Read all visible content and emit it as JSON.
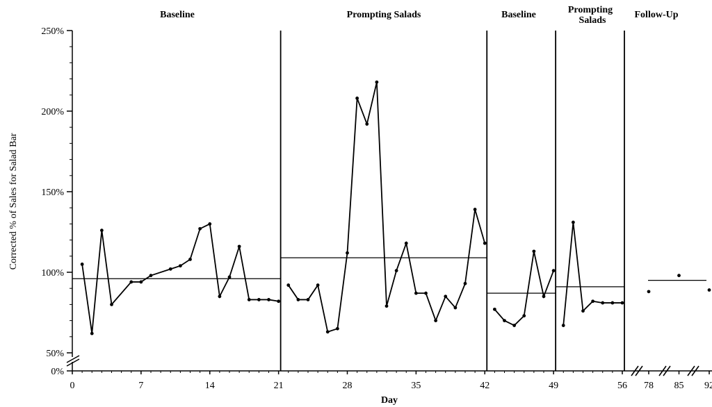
{
  "chart_data": {
    "type": "line",
    "title": "",
    "xlabel": "Day",
    "ylabel": "Corrected % of Sales for Salad Bar",
    "yticks": [
      "0%",
      "50%",
      "100%",
      "150%",
      "200%",
      "250%"
    ],
    "xticks": [
      "0",
      "7",
      "14",
      "21",
      "28",
      "35",
      "42",
      "49",
      "56",
      "78",
      "85",
      "92"
    ],
    "y_range_percent": [
      50,
      250
    ],
    "legend": "none",
    "grid": false,
    "phases": [
      {
        "name": "Baseline",
        "start_day": 0,
        "end_day": 21,
        "mean": 96,
        "points": [
          [
            1,
            105
          ],
          [
            2,
            62
          ],
          [
            3,
            126
          ],
          [
            4,
            80
          ],
          [
            6,
            94
          ],
          [
            7,
            94
          ],
          [
            8,
            98
          ],
          [
            10,
            102
          ],
          [
            11,
            104
          ],
          [
            12,
            108
          ],
          [
            13,
            127
          ],
          [
            14,
            130
          ],
          [
            15,
            85
          ],
          [
            16,
            97
          ],
          [
            17,
            116
          ],
          [
            18,
            83
          ],
          [
            19,
            83
          ],
          [
            20,
            83
          ],
          [
            21,
            82
          ]
        ]
      },
      {
        "name": "Prompting Salads",
        "start_day": 21,
        "end_day": 42,
        "mean": 109,
        "points": [
          [
            22,
            92
          ],
          [
            23,
            83
          ],
          [
            24,
            83
          ],
          [
            25,
            92
          ],
          [
            26,
            63
          ],
          [
            27,
            65
          ],
          [
            28,
            112
          ],
          [
            29,
            208
          ],
          [
            30,
            192
          ],
          [
            31,
            218
          ],
          [
            32,
            79
          ],
          [
            33,
            101
          ],
          [
            34,
            118
          ],
          [
            35,
            87
          ],
          [
            36,
            87
          ],
          [
            37,
            70
          ],
          [
            38,
            85
          ],
          [
            39,
            78
          ],
          [
            40,
            93
          ],
          [
            41,
            139
          ],
          [
            42,
            118
          ]
        ]
      },
      {
        "name": "Baseline",
        "start_day": 42,
        "end_day": 49,
        "mean": 87,
        "points": [
          [
            43,
            77
          ],
          [
            44,
            70
          ],
          [
            45,
            67
          ],
          [
            46,
            73
          ],
          [
            47,
            113
          ],
          [
            48,
            85
          ],
          [
            49,
            101
          ]
        ]
      },
      {
        "name": "Prompting Salads",
        "start_day": 49,
        "end_day": 56,
        "mean": 91,
        "points": [
          [
            50,
            67
          ],
          [
            51,
            131
          ],
          [
            52,
            76
          ],
          [
            53,
            82
          ],
          [
            54,
            81
          ],
          [
            55,
            81
          ],
          [
            56,
            81
          ]
        ]
      },
      {
        "name": "Follow-Up",
        "start_day": 56,
        "end_day": 92,
        "mean": 95,
        "points": [
          [
            78,
            88
          ],
          [
            85,
            98
          ],
          [
            92,
            89
          ]
        ]
      }
    ]
  },
  "labels": {
    "phase_1": "Baseline",
    "phase_2": "Prompting  Salads",
    "phase_3": "Baseline",
    "phase_4_line1": "Prompting",
    "phase_4_line2": "Salads",
    "phase_5": "Follow-Up"
  }
}
